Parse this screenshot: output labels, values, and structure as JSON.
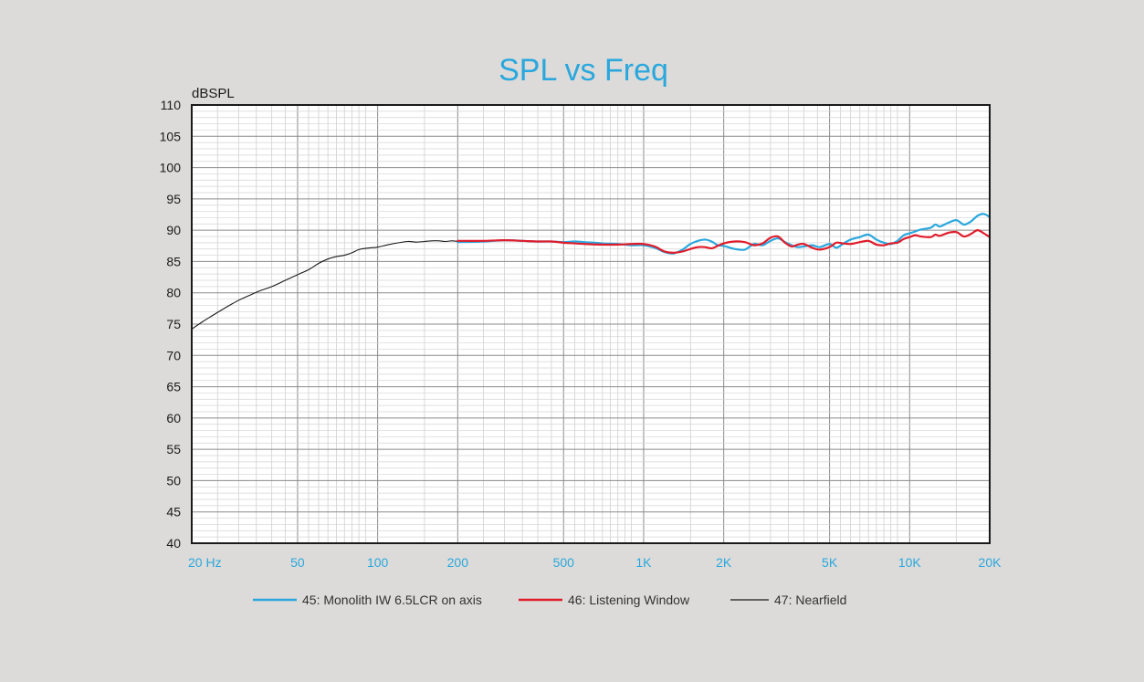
{
  "chart_data": {
    "type": "line",
    "title": "SPL vs Freq",
    "ylabel": "dBSPL",
    "xlabel": "",
    "x_scale": "log",
    "xlim": [
      20,
      20000
    ],
    "ylim": [
      40,
      110
    ],
    "grid": true,
    "legend_position": "bottom",
    "y_ticks": [
      "110",
      "105",
      "100",
      "95",
      "90",
      "85",
      "80",
      "75",
      "70",
      "65",
      "60",
      "55",
      "50",
      "45",
      "40"
    ],
    "x_ticks": [
      {
        "value": 20,
        "label": "20  Hz"
      },
      {
        "value": 50,
        "label": "50"
      },
      {
        "value": 100,
        "label": "100"
      },
      {
        "value": 200,
        "label": "200"
      },
      {
        "value": 500,
        "label": "500"
      },
      {
        "value": 1000,
        "label": "1K"
      },
      {
        "value": 2000,
        "label": "2K"
      },
      {
        "value": 5000,
        "label": "5K"
      },
      {
        "value": 10000,
        "label": "10K"
      },
      {
        "value": 20000,
        "label": "20K"
      }
    ],
    "series": [
      {
        "name": "45: Monolith IW 6.5LCR on axis",
        "color": "#2aa7dd",
        "x": [
          200,
          250,
          300,
          350,
          400,
          450,
          500,
          550,
          600,
          700,
          800,
          900,
          1000,
          1100,
          1200,
          1300,
          1400,
          1500,
          1600,
          1700,
          1800,
          1900,
          2000,
          2200,
          2400,
          2600,
          2800,
          3000,
          3200,
          3400,
          3600,
          3800,
          4000,
          4300,
          4600,
          5000,
          5300,
          5600,
          6000,
          6500,
          7000,
          7500,
          8000,
          8500,
          9000,
          9500,
          10000,
          10500,
          11000,
          12000,
          12500,
          13000,
          14000,
          15000,
          16000,
          17000,
          18000,
          19000,
          20000
        ],
        "y": [
          88.1,
          88.2,
          88.4,
          88.3,
          88.2,
          88.2,
          88.1,
          88.2,
          88.1,
          87.9,
          87.8,
          87.6,
          87.6,
          87.2,
          86.5,
          86.3,
          86.9,
          87.8,
          88.3,
          88.5,
          88.2,
          87.6,
          87.5,
          87.0,
          86.9,
          87.8,
          87.6,
          88.3,
          88.7,
          88.1,
          87.6,
          87.3,
          87.4,
          87.6,
          87.3,
          87.8,
          87.2,
          87.8,
          88.5,
          88.9,
          89.3,
          88.5,
          88.0,
          87.8,
          88.3,
          89.2,
          89.5,
          89.8,
          90.1,
          90.4,
          90.9,
          90.6,
          91.2,
          91.6,
          90.9,
          91.4,
          92.3,
          92.6,
          92.1
        ]
      },
      {
        "name": "46: Listening Window",
        "color": "#e01c2b",
        "x": [
          200,
          250,
          300,
          350,
          400,
          450,
          500,
          550,
          600,
          700,
          800,
          900,
          1000,
          1100,
          1200,
          1300,
          1400,
          1500,
          1600,
          1700,
          1800,
          1900,
          2000,
          2200,
          2400,
          2600,
          2800,
          3000,
          3200,
          3400,
          3600,
          3800,
          4000,
          4300,
          4600,
          5000,
          5300,
          5600,
          6000,
          6500,
          7000,
          7500,
          8000,
          8500,
          9000,
          9500,
          10000,
          10500,
          11000,
          12000,
          12500,
          13000,
          14000,
          15000,
          16000,
          17000,
          18000,
          19000,
          20000
        ],
        "y": [
          88.3,
          88.3,
          88.4,
          88.3,
          88.2,
          88.2,
          88.0,
          87.9,
          87.8,
          87.7,
          87.7,
          87.8,
          87.8,
          87.4,
          86.6,
          86.4,
          86.6,
          87.0,
          87.3,
          87.3,
          87.1,
          87.5,
          87.9,
          88.2,
          88.1,
          87.6,
          87.9,
          88.8,
          89.0,
          88.0,
          87.4,
          87.7,
          87.8,
          87.2,
          86.9,
          87.3,
          88.0,
          87.9,
          87.8,
          88.1,
          88.3,
          87.7,
          87.6,
          87.9,
          88.0,
          88.6,
          88.9,
          89.2,
          89.0,
          88.9,
          89.3,
          89.1,
          89.6,
          89.7,
          89.0,
          89.4,
          90.0,
          89.5,
          88.9
        ]
      },
      {
        "name": "47: Nearfield",
        "color": "#1a1a1a",
        "x": [
          20,
          22,
          24,
          26,
          28,
          30,
          33,
          36,
          40,
          45,
          50,
          55,
          60,
          65,
          70,
          75,
          80,
          85,
          90,
          95,
          100,
          110,
          120,
          130,
          140,
          150,
          160,
          170,
          180,
          190,
          200
        ],
        "y": [
          74.2,
          75.4,
          76.4,
          77.3,
          78.1,
          78.8,
          79.6,
          80.3,
          81.0,
          82.0,
          82.9,
          83.7,
          84.7,
          85.4,
          85.8,
          86.0,
          86.4,
          86.9,
          87.1,
          87.2,
          87.3,
          87.7,
          88.0,
          88.2,
          88.1,
          88.2,
          88.3,
          88.3,
          88.2,
          88.3,
          88.2
        ]
      }
    ]
  }
}
